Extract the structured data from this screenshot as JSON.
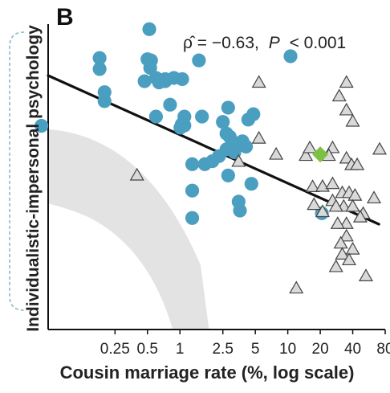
{
  "panel_label": "B",
  "stat_rho": "ρ̂ = −0.63,",
  "stat_p_label": "P",
  "stat_p_value": "< 0.001",
  "chart_data": {
    "type": "scatter",
    "title": "",
    "xlabel": "Cousin marriage rate (%, log scale)",
    "ylabel": "Individualistic-impersonal psychology",
    "xscale": "log",
    "x_tick_labels": [
      "0.25",
      "0.5",
      "1",
      "2.5",
      "5",
      "10",
      "20",
      "40",
      "80"
    ],
    "x_tick_values": [
      0.25,
      0.5,
      1,
      2.5,
      5,
      10,
      20,
      40,
      80
    ],
    "xlim": [
      0.06,
      80
    ],
    "ylim": [
      0,
      100
    ],
    "grid": false,
    "colors": {
      "circle": "#4a9ec0",
      "triangle": "#d9d9d9",
      "diamond": "#7cc142",
      "line": "#111111",
      "band": "#e3e3e3"
    },
    "regression_line": {
      "x": [
        0.06,
        70
      ],
      "y": [
        85.4,
        35.4
      ]
    },
    "series": [
      {
        "marker": "circle",
        "points": [
          [
            0.52,
            101.0
          ],
          [
            0.18,
            91.3
          ],
          [
            0.18,
            87.6
          ],
          [
            0.5,
            90.9
          ],
          [
            0.54,
            90.5
          ],
          [
            0.53,
            88.0
          ],
          [
            1.5,
            90.5
          ],
          [
            0.47,
            83.5
          ],
          [
            0.6,
            84.6
          ],
          [
            0.73,
            84.2
          ],
          [
            0.88,
            84.6
          ],
          [
            1.05,
            84.2
          ],
          [
            0.64,
            83.1
          ],
          [
            0.73,
            83.5
          ],
          [
            0.2,
            79.8
          ],
          [
            0.2,
            76.8
          ],
          [
            0.81,
            75.6
          ],
          [
            0.052,
            68.5
          ],
          [
            0.6,
            71.6
          ],
          [
            1.1,
            71.6
          ],
          [
            1.04,
            69.0
          ],
          [
            1.01,
            67.9
          ],
          [
            1.1,
            68.6
          ],
          [
            1.6,
            71.6
          ],
          [
            2.5,
            69.8
          ],
          [
            2.8,
            74.6
          ],
          [
            4.3,
            70.6
          ],
          [
            4.8,
            72.4
          ],
          [
            2.7,
            65.9
          ],
          [
            2.9,
            64.8
          ],
          [
            3.2,
            62.8
          ],
          [
            3.8,
            63.3
          ],
          [
            4.1,
            61.5
          ],
          [
            2.7,
            60.6
          ],
          [
            3.2,
            59.6
          ],
          [
            2.3,
            58.3
          ],
          [
            2.0,
            56.6
          ],
          [
            1.7,
            55.6
          ],
          [
            1.3,
            55.6
          ],
          [
            1.3,
            46.7
          ],
          [
            2.8,
            51.8
          ],
          [
            4.6,
            49.0
          ],
          [
            3.5,
            43.0
          ],
          [
            3.6,
            40.0
          ],
          [
            1.3,
            37.5
          ],
          [
            10.6,
            91.9
          ],
          [
            20.7,
            39.1
          ]
        ]
      },
      {
        "marker": "triangle",
        "points": [
          [
            0.4,
            51.9
          ],
          [
            5.4,
            83.1
          ],
          [
            35.0,
            83.1
          ],
          [
            30.0,
            78.5
          ],
          [
            35.0,
            73.8
          ],
          [
            40.0,
            70.0
          ],
          [
            5.4,
            64.3
          ],
          [
            3.5,
            56.5
          ],
          [
            7.8,
            58.9
          ],
          [
            14.7,
            58.5
          ],
          [
            16.0,
            61.1
          ],
          [
            26.0,
            61.1
          ],
          [
            24.0,
            58.5
          ],
          [
            35.0,
            57.6
          ],
          [
            39.0,
            55.4
          ],
          [
            44.0,
            55.4
          ],
          [
            71.0,
            60.6
          ],
          [
            17.0,
            48.0
          ],
          [
            21.0,
            48.1
          ],
          [
            26.0,
            49.0
          ],
          [
            32.0,
            46.0
          ],
          [
            37.0,
            46.0
          ],
          [
            42.0,
            45.1
          ],
          [
            17.5,
            42.0
          ],
          [
            26.0,
            43.3
          ],
          [
            33.0,
            41.4
          ],
          [
            40.0,
            41.4
          ],
          [
            50.0,
            39.0
          ],
          [
            63.0,
            44.2
          ],
          [
            47.0,
            37.8
          ],
          [
            28.0,
            41.4
          ],
          [
            21.0,
            39.6
          ],
          [
            35.0,
            35.6
          ],
          [
            29.0,
            35.6
          ],
          [
            35.0,
            31.4
          ],
          [
            31.0,
            29.0
          ],
          [
            40.0,
            27.0
          ],
          [
            32.0,
            25.3
          ],
          [
            28.0,
            21.1
          ],
          [
            37.0,
            23.4
          ],
          [
            53.0,
            18.0
          ],
          [
            12.0,
            13.9
          ]
        ]
      },
      {
        "marker": "diamond",
        "points": [
          [
            20.0,
            58.9
          ]
        ]
      }
    ]
  }
}
